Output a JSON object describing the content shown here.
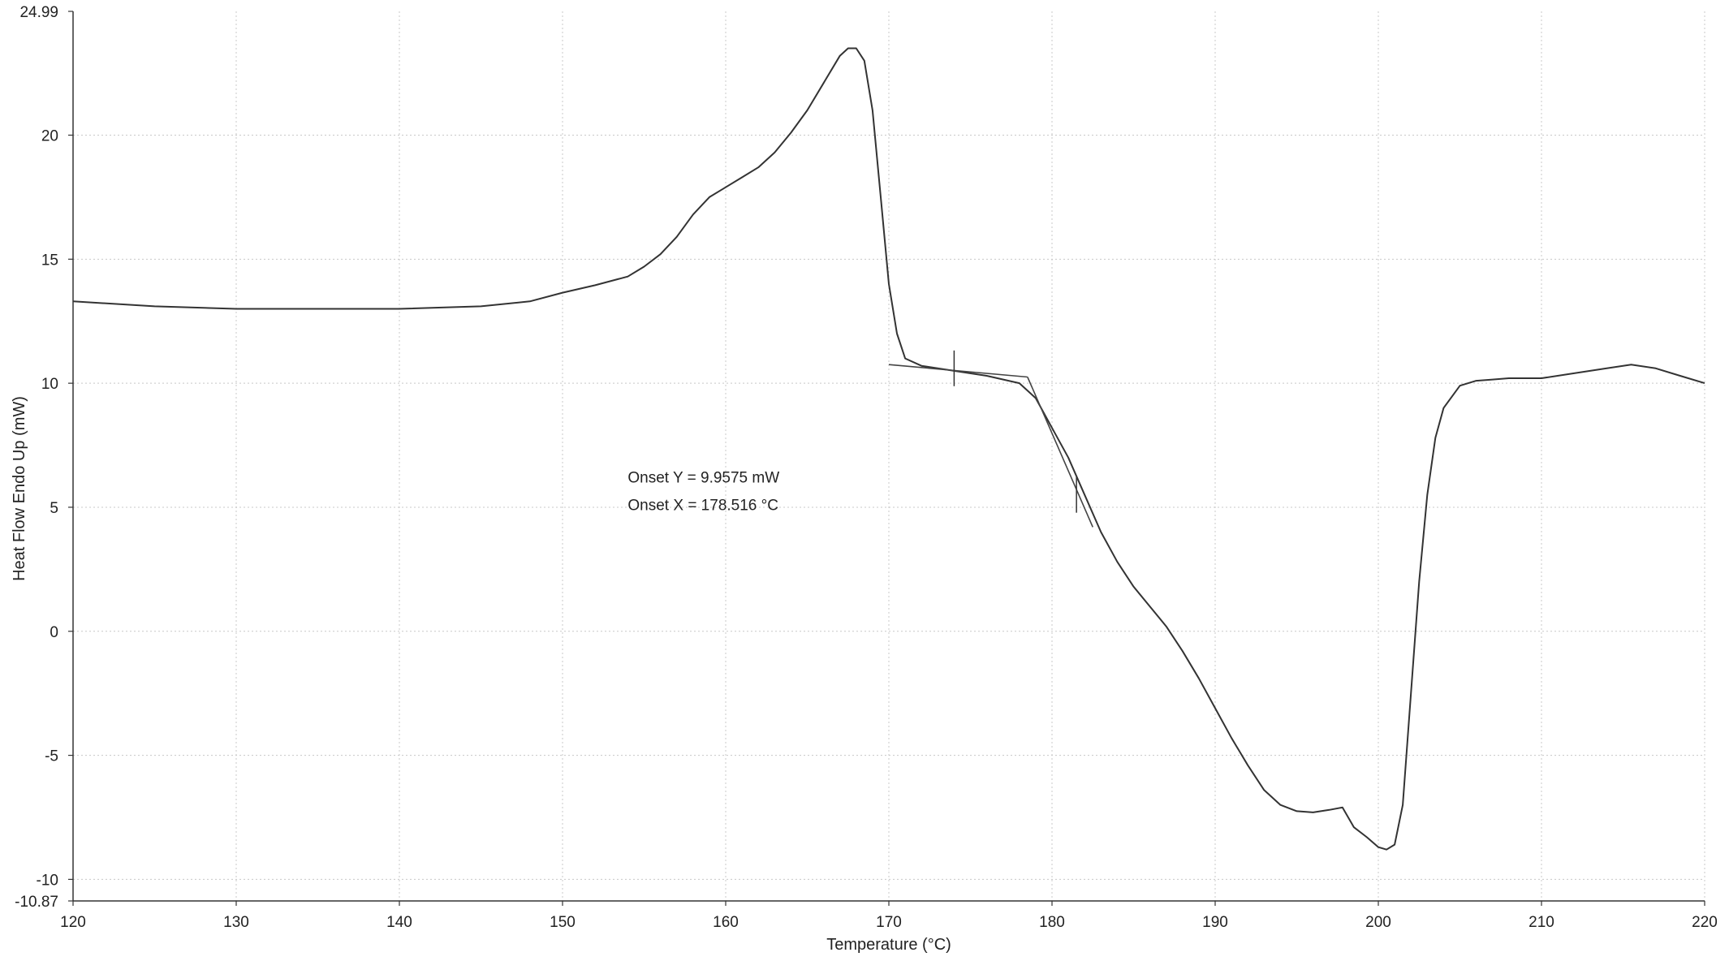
{
  "chart_data": {
    "type": "line",
    "title": "",
    "xlabel": "Temperature (°C)",
    "ylabel": "Heat Flow Endo Up (mW)",
    "xlim": [
      120,
      220
    ],
    "ylim": [
      -10.87,
      24.99
    ],
    "x_ticks": [
      120,
      130,
      140,
      150,
      160,
      170,
      180,
      190,
      200,
      210,
      220
    ],
    "y_ticks": [
      -10.87,
      -10,
      -5,
      0,
      5,
      10,
      15,
      20,
      24.99
    ],
    "grid": true,
    "legend": "none",
    "series": [
      {
        "color": "#333333",
        "x": [
          120,
          125,
          130,
          135,
          140,
          145,
          148,
          150,
          152,
          154,
          155,
          156,
          157,
          158,
          159,
          160,
          161,
          162,
          163,
          164,
          165,
          166,
          167,
          167.5,
          168,
          168.5,
          169,
          169.5,
          170,
          170.5,
          171,
          172,
          174,
          176,
          178,
          179,
          180,
          181,
          182,
          183,
          184,
          185,
          186,
          187,
          188,
          189,
          190,
          191,
          192,
          193,
          194,
          195,
          196,
          197,
          197.8,
          198.5,
          199.3,
          200,
          200.5,
          201,
          201.5,
          202,
          202.5,
          203,
          203.5,
          204,
          205,
          206,
          207,
          208,
          210,
          212,
          214,
          215.5,
          217,
          218.5,
          220
        ],
        "y": [
          13.3,
          13.1,
          13.0,
          13.0,
          13.0,
          13.1,
          13.3,
          13.65,
          13.95,
          14.3,
          14.7,
          15.2,
          15.9,
          16.8,
          17.5,
          17.9,
          18.3,
          18.7,
          19.3,
          20.1,
          21.0,
          22.1,
          23.2,
          23.5,
          23.5,
          23.0,
          21.0,
          17.5,
          14.0,
          12.0,
          11.0,
          10.7,
          10.5,
          10.3,
          10.0,
          9.4,
          8.2,
          7.0,
          5.5,
          4.0,
          2.8,
          1.8,
          1.0,
          0.2,
          -0.8,
          -1.9,
          -3.1,
          -4.3,
          -5.4,
          -6.4,
          -7.0,
          -7.25,
          -7.3,
          -7.2,
          -7.1,
          -7.9,
          -8.3,
          -8.7,
          -8.8,
          -8.6,
          -7.0,
          -2.5,
          2.0,
          5.5,
          7.8,
          9.0,
          9.9,
          10.1,
          10.15,
          10.2,
          10.2,
          10.4,
          10.6,
          10.75,
          10.6,
          10.3,
          10.0
        ]
      }
    ],
    "annotations": [
      {
        "lines": [
          "Onset Y = 9.9575 mW",
          "Onset X = 178.516 °C"
        ],
        "x": 154,
        "y": 6
      }
    ],
    "onset_tangents": [
      {
        "x": [
          170,
          178.5
        ],
        "y": [
          10.75,
          10.25
        ]
      },
      {
        "x": [
          178.5,
          182.5
        ],
        "y": [
          10.25,
          4.2
        ]
      }
    ],
    "markers": [
      {
        "x": 174,
        "y": 10.6
      },
      {
        "x": 181.5,
        "y": 5.5
      }
    ]
  }
}
